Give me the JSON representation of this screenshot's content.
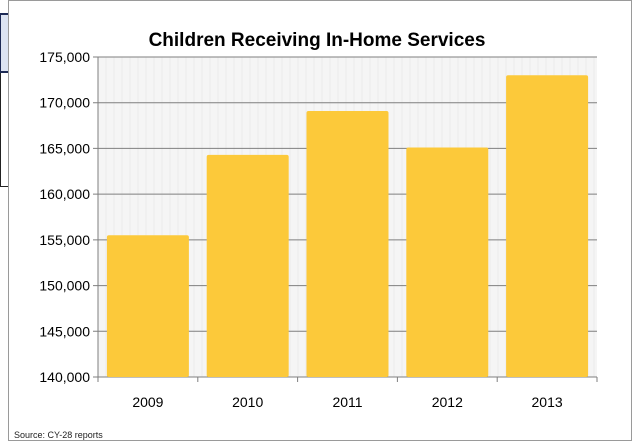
{
  "chart_data": {
    "type": "bar",
    "title": "Children Receiving In-Home Services",
    "categories": [
      "2009",
      "2010",
      "2011",
      "2012",
      "2013"
    ],
    "values": [
      155500,
      164300,
      169100,
      165100,
      173000
    ],
    "ylim": [
      140000,
      175000
    ],
    "yticks": [
      140000,
      145000,
      150000,
      155000,
      160000,
      165000,
      170000,
      175000
    ],
    "ytick_labels": [
      "140,000",
      "145,000",
      "150,000",
      "155,000",
      "160,000",
      "165,000",
      "170,000",
      "175,000"
    ],
    "xlabel": "",
    "ylabel": "",
    "grid": true,
    "legend": "none",
    "bar_color": "#fcc93a",
    "gridline_color": "#7f7f7f",
    "plot_background": "#f5f5f5"
  },
  "footer": {
    "source": "Source: CY-28 reports"
  }
}
